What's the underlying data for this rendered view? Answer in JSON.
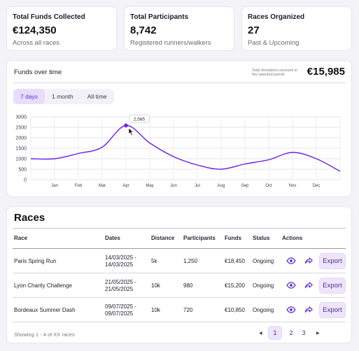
{
  "stats": [
    {
      "label": "Total Funds Collected",
      "value": "€124,350",
      "sub": "Across all races"
    },
    {
      "label": "Total Participants",
      "value": "8,742",
      "sub": "Registered runners/walkers"
    },
    {
      "label": "Races Organized",
      "value": "27",
      "sub": "Past & Upcoming"
    }
  ],
  "funds_chart": {
    "title": "Funds over time",
    "total_note": "Total donations received in the selected period",
    "total": "€15,985",
    "tabs": [
      "7 days",
      "1 month",
      "All time"
    ],
    "active_tab": "7 days",
    "tooltip": "2,585",
    "accent": "#6a1fe6"
  },
  "chart_data": {
    "type": "line",
    "x": [
      "",
      "Jan",
      "Feb",
      "Mar",
      "Apr",
      "May",
      "Jun",
      "Jul",
      "Aug",
      "Sep",
      "Oct",
      "Nov",
      "Dec",
      ""
    ],
    "series": [
      {
        "values": [
          1000,
          1000,
          1250,
          1550,
          2585,
          1750,
          1100,
          700,
          500,
          750,
          950,
          1300,
          1000,
          400
        ]
      }
    ],
    "y_ticks": [
      0,
      500,
      1000,
      1500,
      2000,
      2500,
      3000
    ],
    "ylim": [
      0,
      3000
    ],
    "grid": true,
    "highlight_index": 4
  },
  "races": {
    "title": "Races",
    "columns": [
      "Race",
      "Dates",
      "Distance",
      "Participants",
      "Funds",
      "Status",
      "Actions"
    ],
    "rows": [
      {
        "name": "Paris Spring Run",
        "dates1": "14/03/2025 -",
        "dates2": "14/03/2025",
        "distance": "5k",
        "participants": "1,250",
        "funds": "€18,450",
        "status": "Ongoing",
        "export": "Export"
      },
      {
        "name": "Lyon Charity Challenge",
        "dates1": "21/05/2025 -",
        "dates2": "21/05/2025",
        "distance": "10k",
        "participants": "980",
        "funds": "€15,200",
        "status": "Ongoing",
        "export": "Export"
      },
      {
        "name": "Bordeaux Summer Dash",
        "dates1": "09/07/2025 -",
        "dates2": "09/07/2025",
        "distance": "10k",
        "participants": "720",
        "funds": "€10,850",
        "status": "Ongoing",
        "export": "Export"
      }
    ],
    "footer": "Showing 1 - 4 of XX races",
    "pages": [
      "1",
      "2",
      "3"
    ],
    "active_page": "1",
    "prev_icon": "◀",
    "next_icon": "▶"
  }
}
